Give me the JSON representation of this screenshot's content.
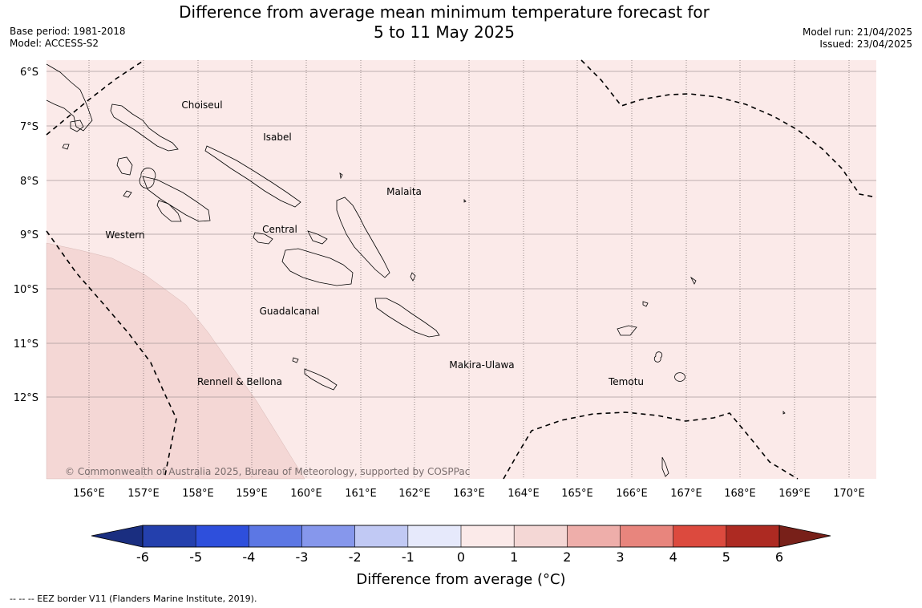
{
  "title": {
    "line1": "Difference from average mean minimum temperature forecast for",
    "line2": "5 to 11 May 2025"
  },
  "meta_left": {
    "base_period": "Base period: 1981-2018",
    "model": "Model: ACCESS-S2"
  },
  "meta_right": {
    "model_run": "Model run: 21/04/2025",
    "issued": "Issued: 23/04/2025"
  },
  "map": {
    "lon_range": [
      155.2,
      170.5
    ],
    "lat_range": [
      -13.5,
      -5.8
    ],
    "background_color": "#fbeae9",
    "warm_region_color": "#f4d7d5",
    "lat_ticks": [
      "6°S",
      "7°S",
      "8°S",
      "9°S",
      "10°S",
      "11°S",
      "12°S"
    ],
    "lon_ticks": [
      "156°E",
      "157°E",
      "158°E",
      "159°E",
      "160°E",
      "161°E",
      "162°E",
      "163°E",
      "164°E",
      "165°E",
      "166°E",
      "167°E",
      "168°E",
      "169°E",
      "170°E"
    ],
    "places": [
      {
        "name": "Choiseul"
      },
      {
        "name": "Isabel"
      },
      {
        "name": "Malaita"
      },
      {
        "name": "Western"
      },
      {
        "name": "Central"
      },
      {
        "name": "Guadalcanal"
      },
      {
        "name": "Makira-Ulawa"
      },
      {
        "name": "Rennell & Bellona"
      },
      {
        "name": "Temotu"
      }
    ],
    "copyright": "© Commonwealth of Australia 2025, Bureau of Meteorology, supported by COSPPac"
  },
  "colorbar": {
    "title": "Difference from average (°C)",
    "ticks": [
      "-6",
      "-5",
      "-4",
      "-3",
      "-2",
      "-1",
      "0",
      "1",
      "2",
      "3",
      "4",
      "5",
      "6"
    ],
    "colors": [
      "#2440ad",
      "#2e4fdc",
      "#5c77e4",
      "#8697ec",
      "#c1c9f4",
      "#e6e9fb",
      "#fbeae9",
      "#f4d7d5",
      "#eeaeaa",
      "#e8857d",
      "#dc4a3e",
      "#ad2a22"
    ],
    "under_color": "#1a2e80",
    "over_color": "#782019"
  },
  "footer": "--  --  -- EEZ border V11 (Flanders Marine Institute, 2019)."
}
